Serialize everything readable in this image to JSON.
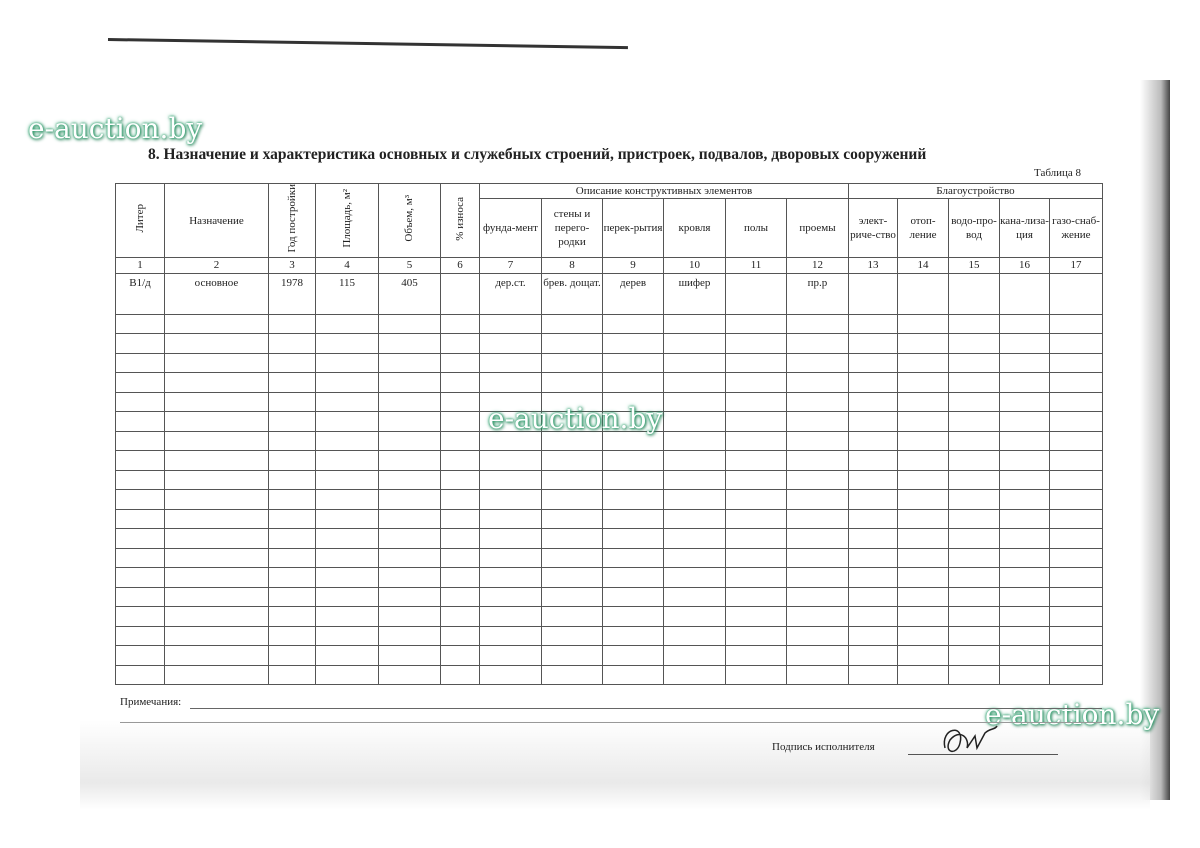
{
  "title": "8. Назначение и характеристика основных и служебных строений, пристроек, подвалов, дворовых сооружений",
  "table_label": "Таблица 8",
  "group_headers": {
    "construction": "Описание конструктивных элементов",
    "amenities": "Благоустройство"
  },
  "columns": [
    "Литер",
    "Назначение",
    "Год постройки",
    "Площадь, м²",
    "Объем, м³",
    "% износа",
    "фунда-мент",
    "стены и перего-родки",
    "перек-рытия",
    "кровля",
    "полы",
    "проемы",
    "элект-риче-ство",
    "отоп-ление",
    "водо-про-вод",
    "кана-лиза-ция",
    "газо-снаб-жение"
  ],
  "column_numbers": [
    "1",
    "2",
    "3",
    "4",
    "5",
    "6",
    "7",
    "8",
    "9",
    "10",
    "11",
    "12",
    "13",
    "14",
    "15",
    "16",
    "17"
  ],
  "rows": [
    [
      "В1/д",
      "основное",
      "1978",
      "115",
      "405",
      "",
      "дер.ст.",
      "брев. дощат.",
      "дерев",
      "шифер",
      "",
      "пр.р",
      "",
      "",
      "",
      "",
      ""
    ]
  ],
  "notes_label": "Примечания:",
  "signature_label": "Подпись исполнителя",
  "watermark": "e-auction.by"
}
